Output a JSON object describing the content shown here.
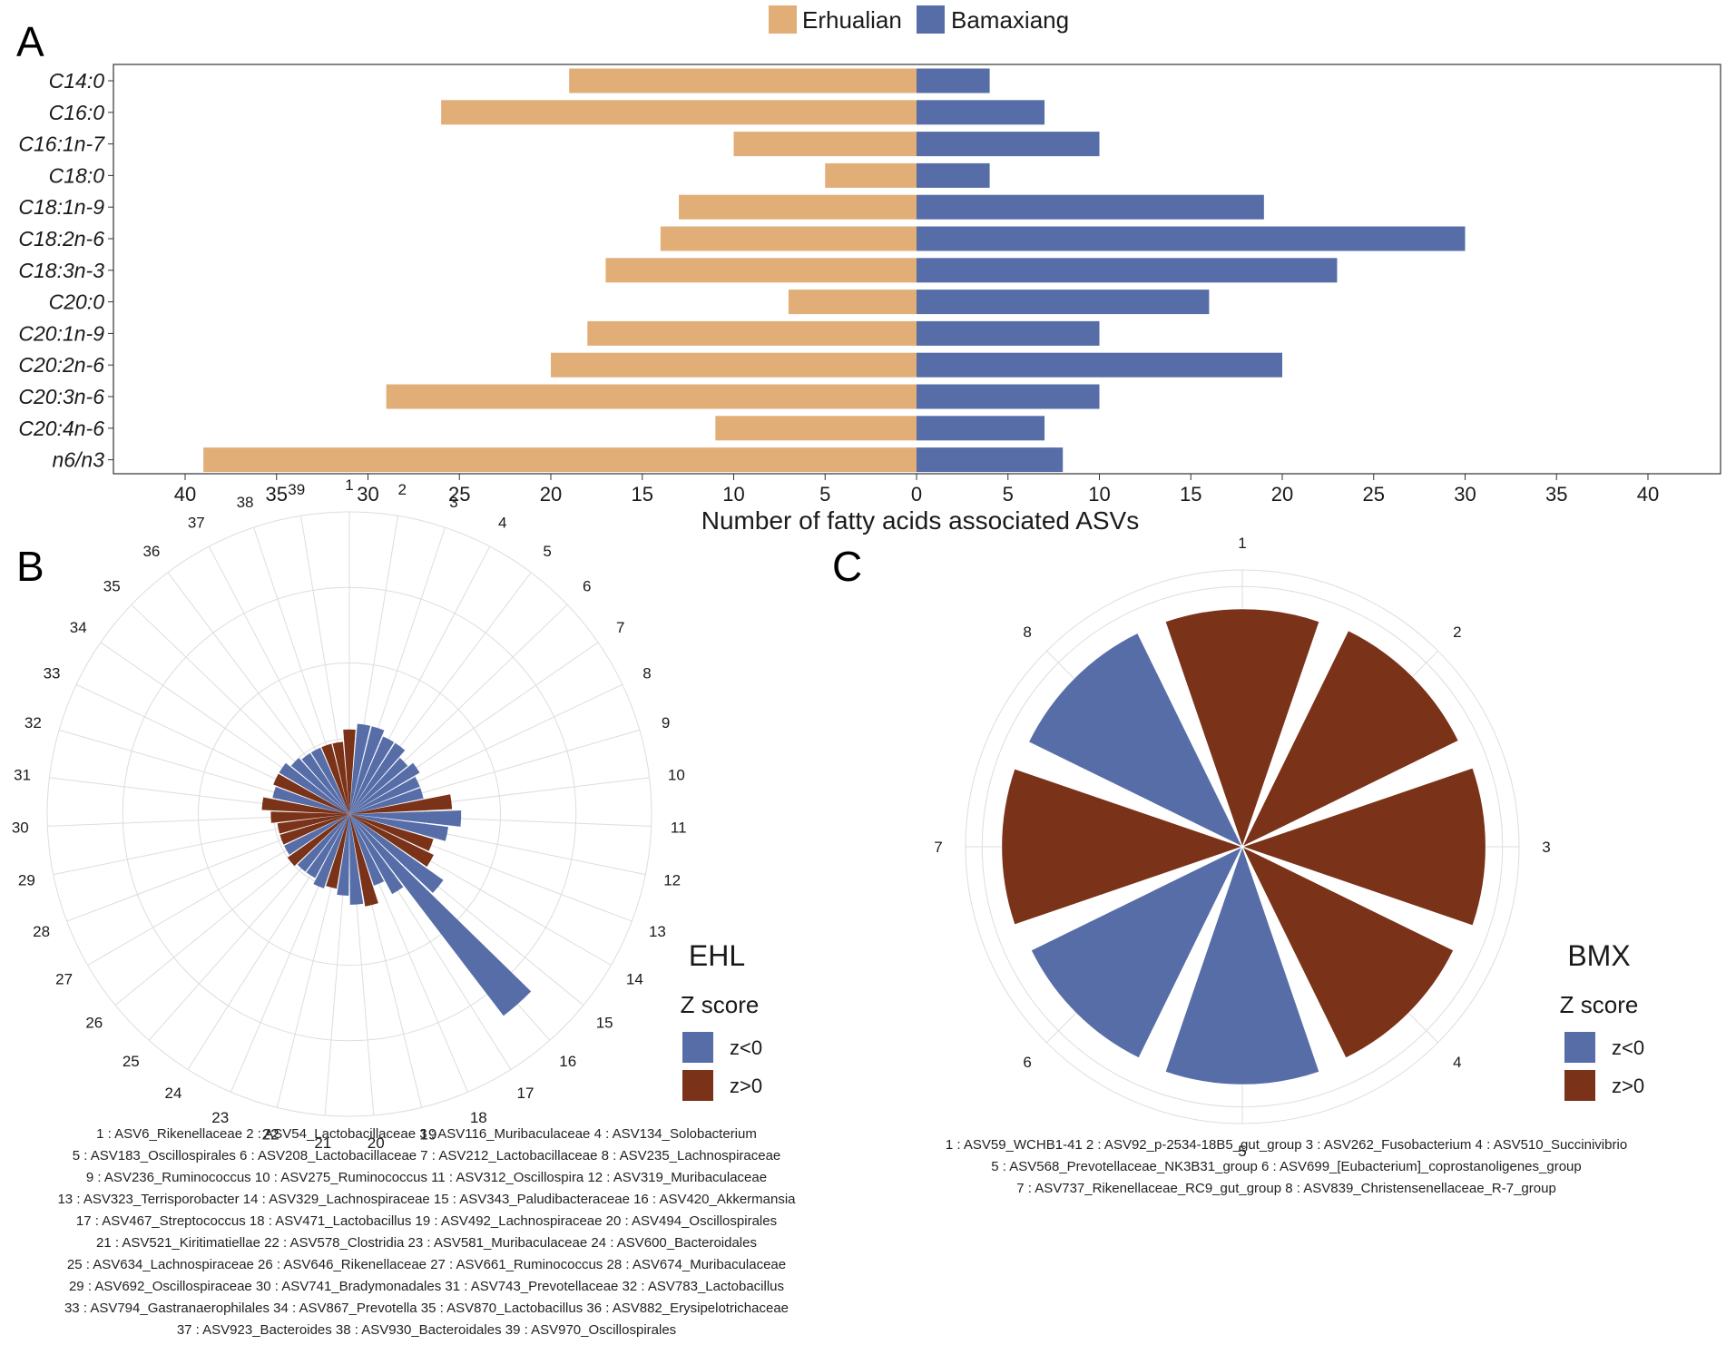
{
  "colors": {
    "erhualian": "#E2AE78",
    "bamaxiang": "#566DA8",
    "neg": "#566DA8",
    "pos": "#7A3218",
    "grid": "#DDDDDD",
    "axis": "#333333"
  },
  "panel_labels": {
    "a": "A",
    "b": "B",
    "c": "C"
  },
  "chart_data": [
    {
      "id": "A",
      "type": "bar",
      "orientation": "horizontal",
      "diverging": true,
      "categories": [
        "C14:0",
        "C16:0",
        "C16:1n-7",
        "C18:0",
        "C18:1n-9",
        "C18:2n-6",
        "C18:3n-3",
        "C20:0",
        "C20:1n-9",
        "C20:2n-6",
        "C20:3n-6",
        "C20:4n-6",
        "n6/n3"
      ],
      "series": [
        {
          "name": "Erhualian",
          "color": "#E2AE78",
          "values": [
            19,
            26,
            10,
            5,
            13,
            14,
            17,
            7,
            18,
            20,
            29,
            11,
            39
          ]
        },
        {
          "name": "Bamaxiang",
          "color": "#566DA8",
          "values": [
            4,
            7,
            10,
            4,
            19,
            30,
            23,
            16,
            10,
            20,
            10,
            7,
            8
          ]
        }
      ],
      "xlabel": "Number of fatty acids associated ASVs",
      "xlim": [
        -44,
        44
      ],
      "xticks": [
        -40,
        -35,
        -30,
        -25,
        -20,
        -15,
        -10,
        -5,
        0,
        5,
        10,
        15,
        20,
        25,
        30,
        35,
        40
      ],
      "xtick_labels": [
        "40",
        "35",
        "30",
        "25",
        "20",
        "15",
        "10",
        "5",
        "0",
        "5",
        "10",
        "15",
        "20",
        "25",
        "30",
        "35",
        "40"
      ],
      "legend_position": "top-center"
    },
    {
      "id": "B",
      "type": "polar-bar",
      "title": "EHL",
      "legend_title": "Z score",
      "legend_items": [
        {
          "label": "z<0",
          "color": "#566DA8"
        },
        {
          "label": "z>0",
          "color": "#7A3218"
        }
      ],
      "categories": [
        "1",
        "2",
        "3",
        "4",
        "5",
        "6",
        "7",
        "8",
        "9",
        "10",
        "11",
        "12",
        "13",
        "14",
        "15",
        "16",
        "17",
        "18",
        "19",
        "20",
        "21",
        "22",
        "23",
        "24",
        "25",
        "26",
        "27",
        "28",
        "29",
        "30",
        "31",
        "32",
        "33",
        "34",
        "35",
        "36",
        "37",
        "38",
        "39"
      ],
      "values": [
        0.28,
        0.3,
        0.3,
        0.28,
        0.28,
        0.25,
        0.27,
        0.25,
        0.25,
        0.34,
        0.37,
        0.33,
        0.29,
        0.31,
        0.38,
        0.84,
        0.3,
        0.25,
        0.31,
        0.3,
        0.27,
        0.25,
        0.26,
        0.24,
        0.24,
        0.25,
        0.24,
        0.24,
        0.24,
        0.26,
        0.29,
        0.26,
        0.27,
        0.27,
        0.25,
        0.24,
        0.24,
        0.24,
        0.24
      ],
      "signs": [
        "pos",
        "neg",
        "neg",
        "neg",
        "neg",
        "neg",
        "neg",
        "neg",
        "neg",
        "pos",
        "neg",
        "neg",
        "pos",
        "pos",
        "neg",
        "neg",
        "neg",
        "neg",
        "pos",
        "neg",
        "neg",
        "pos",
        "neg",
        "neg",
        "neg",
        "pos",
        "neg",
        "pos",
        "pos",
        "pos",
        "pos",
        "neg",
        "pos",
        "neg",
        "neg",
        "neg",
        "neg",
        "pos",
        "pos"
      ],
      "rlim": [
        0,
        1
      ],
      "caption_lines": [
        "1 : ASV6_Rikenellaceae   2 : ASV54_Lactobacillaceae   3 : ASV116_Muribaculaceae   4 : ASV134_Solobacterium",
        "5 : ASV183_Oscillospirales   6 : ASV208_Lactobacillaceae   7 : ASV212_Lactobacillaceae   8 : ASV235_Lachnospiraceae",
        "9 : ASV236_Ruminococcus   10 : ASV275_Ruminococcus   11 : ASV312_Oscillospira   12 : ASV319_Muribaculaceae",
        "13 : ASV323_Terrisporobacter   14 : ASV329_Lachnospiraceae   15 : ASV343_Paludibacteraceae   16 : ASV420_Akkermansia",
        "17 : ASV467_Streptococcus   18 : ASV471_Lactobacillus   19 : ASV492_Lachnospiraceae   20 : ASV494_Oscillospirales",
        "21 : ASV521_Kiritimatiellae   22 : ASV578_Clostridia   23 : ASV581_Muribaculaceae   24 : ASV600_Bacteroidales",
        "25 : ASV634_Lachnospiraceae   26 : ASV646_Rikenellaceae   27 : ASV661_Ruminococcus   28 : ASV674_Muribaculaceae",
        "29 : ASV692_Oscillospiraceae   30 : ASV741_Bradymonadales   31 : ASV743_Prevotellaceae   32 : ASV783_Lactobacillus",
        "33 : ASV794_Gastranaerophilales   34 : ASV867_Prevotella   35 : ASV870_Lactobacillus   36 : ASV882_Erysipelotrichaceae",
        "37 : ASV923_Bacteroides   38 : ASV930_Bacteroidales   39 : ASV970_Oscillospirales"
      ]
    },
    {
      "id": "C",
      "type": "polar-bar",
      "title": "BMX",
      "legend_title": "Z score",
      "legend_items": [
        {
          "label": "z<0",
          "color": "#566DA8"
        },
        {
          "label": "z>0",
          "color": "#7A3218"
        }
      ],
      "categories": [
        "1",
        "2",
        "3",
        "4",
        "5",
        "6",
        "7",
        "8"
      ],
      "values": [
        0.86,
        0.87,
        0.88,
        0.85,
        0.86,
        0.85,
        0.87,
        0.86
      ],
      "signs": [
        "pos",
        "pos",
        "pos",
        "pos",
        "neg",
        "neg",
        "pos",
        "neg"
      ],
      "rlim": [
        0,
        1
      ],
      "caption_lines": [
        "1 : ASV59_WCHB1-41   2 : ASV92_p-2534-18B5_gut_group   3 : ASV262_Fusobacterium   4 : ASV510_Succinivibrio",
        "5 : ASV568_Prevotellaceae_NK3B31_group   6 : ASV699_[Eubacterium]_coprostanoligenes_group",
        "7 : ASV737_Rikenellaceae_RC9_gut_group   8 : ASV839_Christensenellaceae_R-7_group"
      ]
    }
  ]
}
